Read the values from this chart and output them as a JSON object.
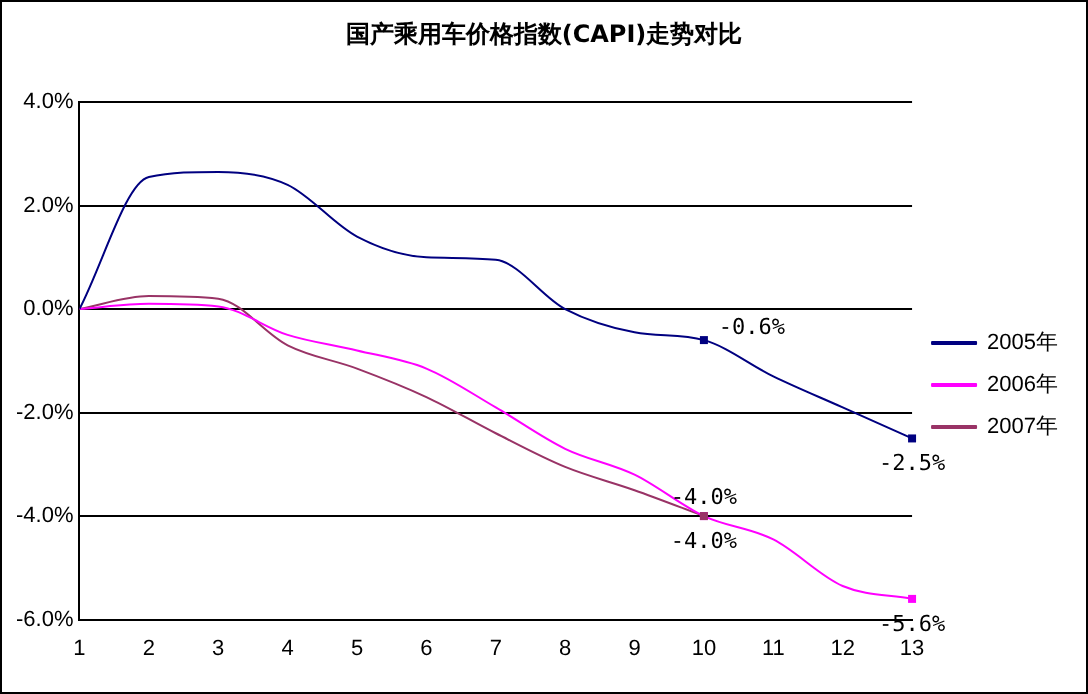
{
  "chart_data": {
    "type": "line",
    "title": "国产乘用车价格指数(CAPI)走势对比",
    "x": [
      1,
      2,
      3,
      4,
      5,
      6,
      7,
      8,
      9,
      10,
      11,
      12,
      13
    ],
    "xlim": [
      1,
      13
    ],
    "xticks": [
      1,
      2,
      3,
      4,
      5,
      6,
      7,
      8,
      9,
      10,
      11,
      12,
      13
    ],
    "ylim": [
      -6,
      4
    ],
    "yticks": [
      {
        "value": -6,
        "label": "-6.0%"
      },
      {
        "value": -4,
        "label": "-4.0%"
      },
      {
        "value": -2,
        "label": "-2.0%"
      },
      {
        "value": 0,
        "label": "0.0%"
      },
      {
        "value": 2,
        "label": "2.0%"
      },
      {
        "value": 4,
        "label": "4.0%"
      }
    ],
    "series": [
      {
        "name": "2005年",
        "color": "#000080",
        "values": [
          0,
          2.55,
          2.65,
          2.4,
          1.4,
          1.0,
          0.95,
          0.0,
          -0.45,
          -0.6,
          -1.3,
          -1.9,
          -2.5
        ],
        "value_labels": [
          null,
          null,
          null,
          null,
          null,
          null,
          null,
          null,
          null,
          "-0.6%",
          null,
          null,
          "-2.5%"
        ]
      },
      {
        "name": "2006年",
        "color": "#ff00ff",
        "values": [
          0,
          0.1,
          0.05,
          -0.5,
          -0.8,
          -1.15,
          -1.9,
          -2.7,
          -3.2,
          -4.0,
          -4.45,
          -5.35,
          -5.6
        ],
        "value_labels": [
          null,
          null,
          null,
          null,
          null,
          null,
          null,
          null,
          null,
          "-4.0%",
          null,
          null,
          "-5.6%"
        ]
      },
      {
        "name": "2007年",
        "color": "#993366",
        "values": [
          0,
          0.25,
          0.2,
          -0.7,
          -1.15,
          -1.7,
          -2.4,
          -3.05,
          -3.5,
          -4.0,
          null,
          null,
          null
        ],
        "value_labels": [
          null,
          null,
          null,
          null,
          null,
          null,
          null,
          null,
          null,
          "-4.0%",
          null,
          null,
          null
        ]
      }
    ],
    "grid": "y",
    "line_style": "solid",
    "marker": "none",
    "legend": "right"
  }
}
